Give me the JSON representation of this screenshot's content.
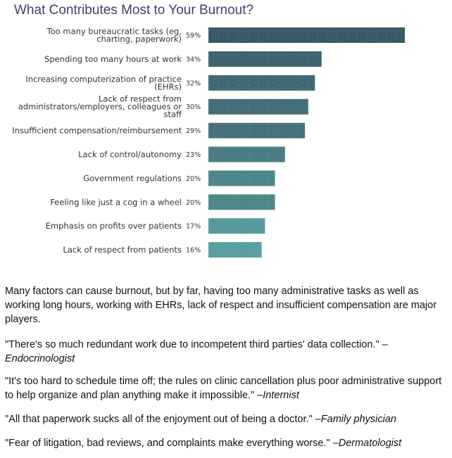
{
  "chart_data": {
    "type": "bar",
    "orientation": "horizontal",
    "title": "What Contributes Most to Your Burnout?",
    "categories": [
      "Too many bureaucratic tasks (eg, charting, paperwork)",
      "Spending too many hours at work",
      "Increasing computerization of practice (EHRs)",
      "Lack of respect from administrators/employers, colleagues or staff",
      "Insufficient compensation/reimbursement",
      "Lack of control/autonomy",
      "Government regulations",
      "Feeling like just a cog in a wheel",
      "Emphasis on profits over patients",
      "Lack of respect from patients"
    ],
    "category_lines": [
      [
        "Too many bureaucratic tasks (eg,",
        "charting, paperwork)"
      ],
      [
        "Spending too many hours at work"
      ],
      [
        "Increasing computerization of practice",
        "(EHRs)"
      ],
      [
        "Lack of respect from",
        "administrators/employers, colleagues or",
        "staff"
      ],
      [
        "Insufficient compensation/reimbursement"
      ],
      [
        "Lack of control/autonomy"
      ],
      [
        "Government regulations"
      ],
      [
        "Feeling like just a cog in a wheel"
      ],
      [
        "Emphasis on profits over patients"
      ],
      [
        "Lack of respect from patients"
      ]
    ],
    "values": [
      59,
      34,
      32,
      30,
      29,
      23,
      20,
      20,
      17,
      16
    ],
    "value_labels": [
      "59%",
      "34%",
      "32%",
      "30%",
      "29%",
      "23%",
      "20%",
      "20%",
      "17%",
      "16%"
    ],
    "xlim": [
      0,
      59
    ],
    "grid": false,
    "legend": "none",
    "colors": [
      "#3a5a68",
      "#3d6470",
      "#3f6a74",
      "#436f77",
      "#46737a",
      "#4a7e84",
      "#4e8789",
      "#4f8889",
      "#55999c",
      "#589fa0"
    ]
  },
  "text": {
    "paragraph": "Many factors can cause burnout, but by far, having too many administrative tasks as well as working long hours, working with EHRs, lack of respect and insufficient compensation are major players.",
    "quotes": [
      {
        "quote": "\"There's so much redundant work due to incompetent third parties' data collection.\" ",
        "attribution": "–Endocrinologist"
      },
      {
        "quote": "\"It's too hard to schedule time off; the rules on clinic cancellation plus poor administrative support to help organize and plan anything make it impossible.\" ",
        "attribution": "–Internist"
      },
      {
        "quote": "\"All that paperwork sucks all of the enjoyment out of being a doctor.\" ",
        "attribution": "–Family physician"
      },
      {
        "quote": "\"Fear of litigation, bad reviews, and complaints make everything worse.\" ",
        "attribution": "–Dermatologist"
      }
    ]
  }
}
